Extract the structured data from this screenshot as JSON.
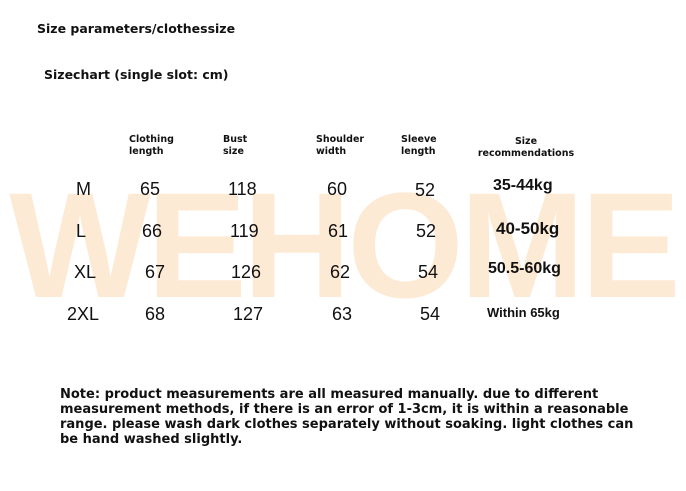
{
  "watermark": "WEHOME",
  "title": "Size parameters/clothessize",
  "subtitle": "Sizechart (single slot: cm)",
  "headers": [
    "Clothing\nlength",
    "Bust\nsize",
    "Shoulder\nwidth",
    "Sleeve\nlength",
    "Size\nrecommendations"
  ],
  "rows": [
    {
      "size": "M",
      "length": "65",
      "bust": "118",
      "shoulder": "60",
      "sleeve": "52",
      "rec": "35-44kg"
    },
    {
      "size": "L",
      "length": "66",
      "bust": "119",
      "shoulder": "61",
      "sleeve": "52",
      "rec": "40-50kg"
    },
    {
      "size": "XL",
      "length": "67",
      "bust": "126",
      "shoulder": "62",
      "sleeve": "54",
      "rec": "50.5-60kg"
    },
    {
      "size": "2XL",
      "length": "68",
      "bust": "127",
      "shoulder": "63",
      "sleeve": "54",
      "rec": "Within 65kg"
    }
  ],
  "note": "Note: product measurements are all measured manually. due to different measurement methods, if there is an error of 1-3cm, it is within a reasonable range. please wash dark clothes separately without soaking. light clothes can be hand washed slightly."
}
